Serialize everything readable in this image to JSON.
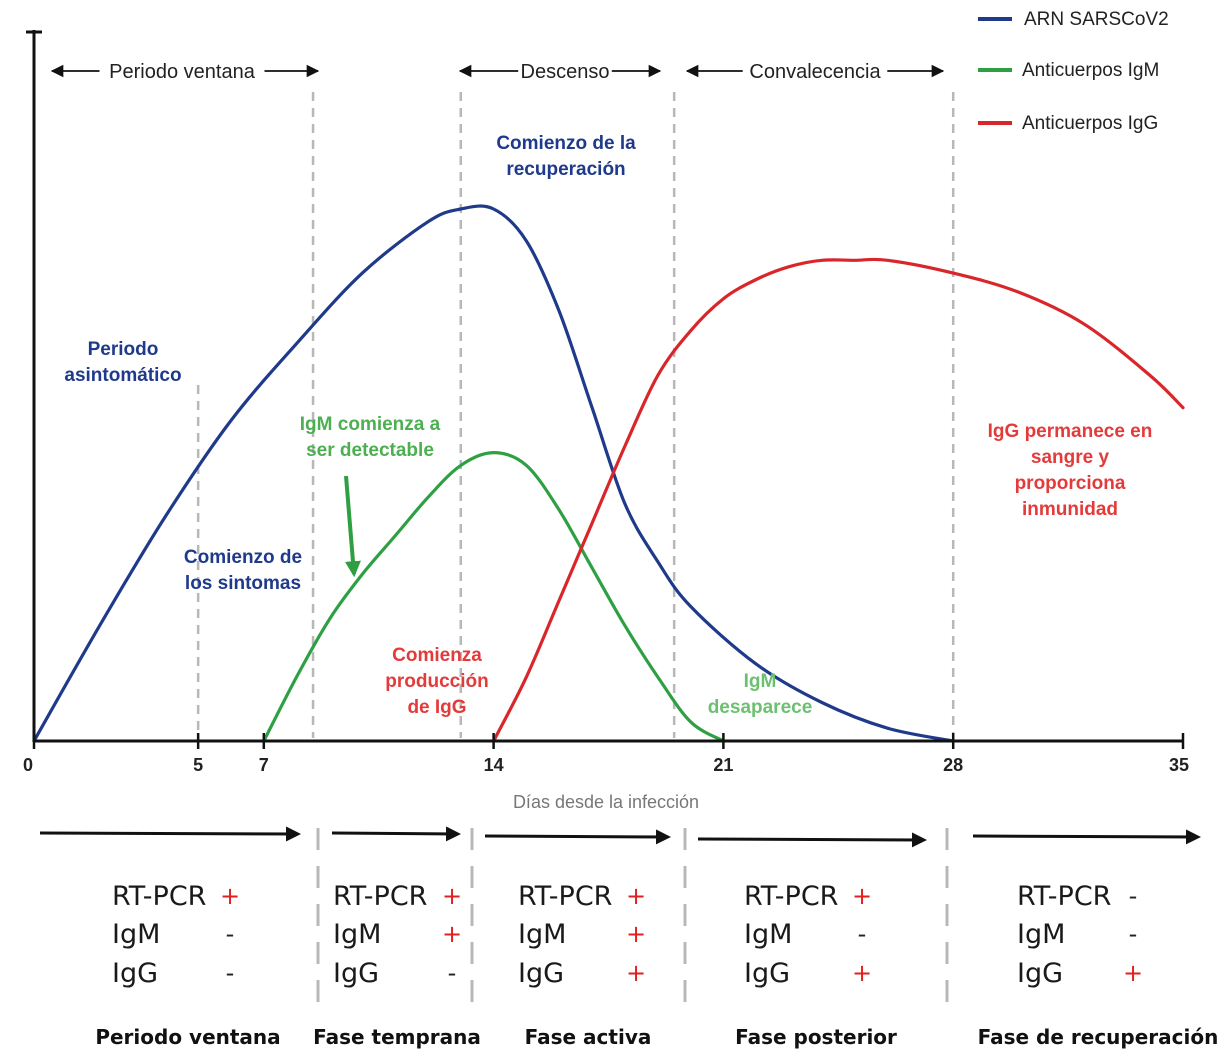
{
  "chart_data": {
    "type": "line",
    "xlabel": "Días desde la infección",
    "x_ticks": [
      0,
      5,
      7,
      14,
      21,
      28,
      35
    ],
    "xlim": [
      0,
      35
    ],
    "ylim": [
      0,
      100
    ],
    "colors": {
      "rna": "#1f3a8a",
      "igm": "#2ea043",
      "igg": "#d9262b",
      "plus": "#e02020",
      "axis": "#111111",
      "divider": "#b8b8b8"
    },
    "series": [
      {
        "key": "rna",
        "name": "ARN SARSCoV2",
        "x": [
          0,
          2,
          4,
          6,
          8,
          10,
          12,
          13,
          14,
          15,
          16,
          17,
          18,
          19,
          20,
          22,
          24,
          26,
          28
        ],
        "y": [
          0,
          18,
          35,
          50,
          62,
          73,
          81,
          83,
          83,
          78,
          67,
          52,
          37,
          28,
          21,
          12,
          6,
          2,
          0
        ]
      },
      {
        "key": "igm",
        "name": "Anticuerpos IgM",
        "x": [
          7,
          8,
          9,
          10,
          11,
          12,
          13,
          14,
          15,
          16,
          17,
          18,
          19,
          20,
          21
        ],
        "y": [
          0,
          10,
          19,
          26,
          32,
          38,
          43,
          45,
          43,
          36,
          27,
          18,
          10,
          3,
          0
        ]
      },
      {
        "key": "igg",
        "name": "Anticuerpos IgG",
        "x": [
          14,
          15,
          16,
          17,
          18,
          19,
          20,
          21,
          22,
          23,
          24,
          25,
          26,
          28,
          30,
          32,
          34,
          35
        ],
        "y": [
          0,
          10,
          22,
          34,
          46,
          57,
          64,
          69,
          72,
          74,
          75,
          75,
          75,
          73,
          70,
          65,
          57,
          52
        ]
      }
    ],
    "dividers": [
      5,
      8.5,
      13,
      19.5,
      28
    ],
    "periods": [
      {
        "label": "Periodo ventana",
        "from": 0.7,
        "to": 8.5
      },
      {
        "label": "Descenso",
        "from": 13,
        "to": 19
      },
      {
        "label": "Convalecencia",
        "from": 20,
        "to": 28
      }
    ],
    "annotations": {
      "asymptomatic": [
        "Periodo",
        "asintomático"
      ],
      "symptom_onset": [
        "Comienzo de",
        "los sintomas"
      ],
      "recovery_start": [
        "Comienzo de la",
        "recuperación"
      ],
      "igm_detectable": [
        "IgM comienza a",
        "ser detectable"
      ],
      "igg_production": [
        "Comienza",
        "producción",
        "de IgG"
      ],
      "igm_disappears": [
        "IgM",
        "desaparece"
      ],
      "igg_remains": [
        "IgG permanece en",
        "sangre y",
        "proporciona",
        "inmunidad"
      ]
    },
    "legend_position": "top-right"
  },
  "table": {
    "row_labels": [
      "RT-PCR",
      "IgM",
      "IgG"
    ],
    "phases": [
      {
        "name": "Periodo ventana",
        "signs": [
          "+",
          "-",
          "-"
        ]
      },
      {
        "name": "Fase temprana",
        "signs": [
          "+",
          "+",
          "-"
        ]
      },
      {
        "name": "Fase activa",
        "signs": [
          "+",
          "+",
          "+"
        ]
      },
      {
        "name": "Fase posterior",
        "signs": [
          "+",
          "-",
          "+"
        ]
      },
      {
        "name": "Fase de recuperación",
        "signs": [
          "-",
          "-",
          "+"
        ]
      }
    ]
  }
}
